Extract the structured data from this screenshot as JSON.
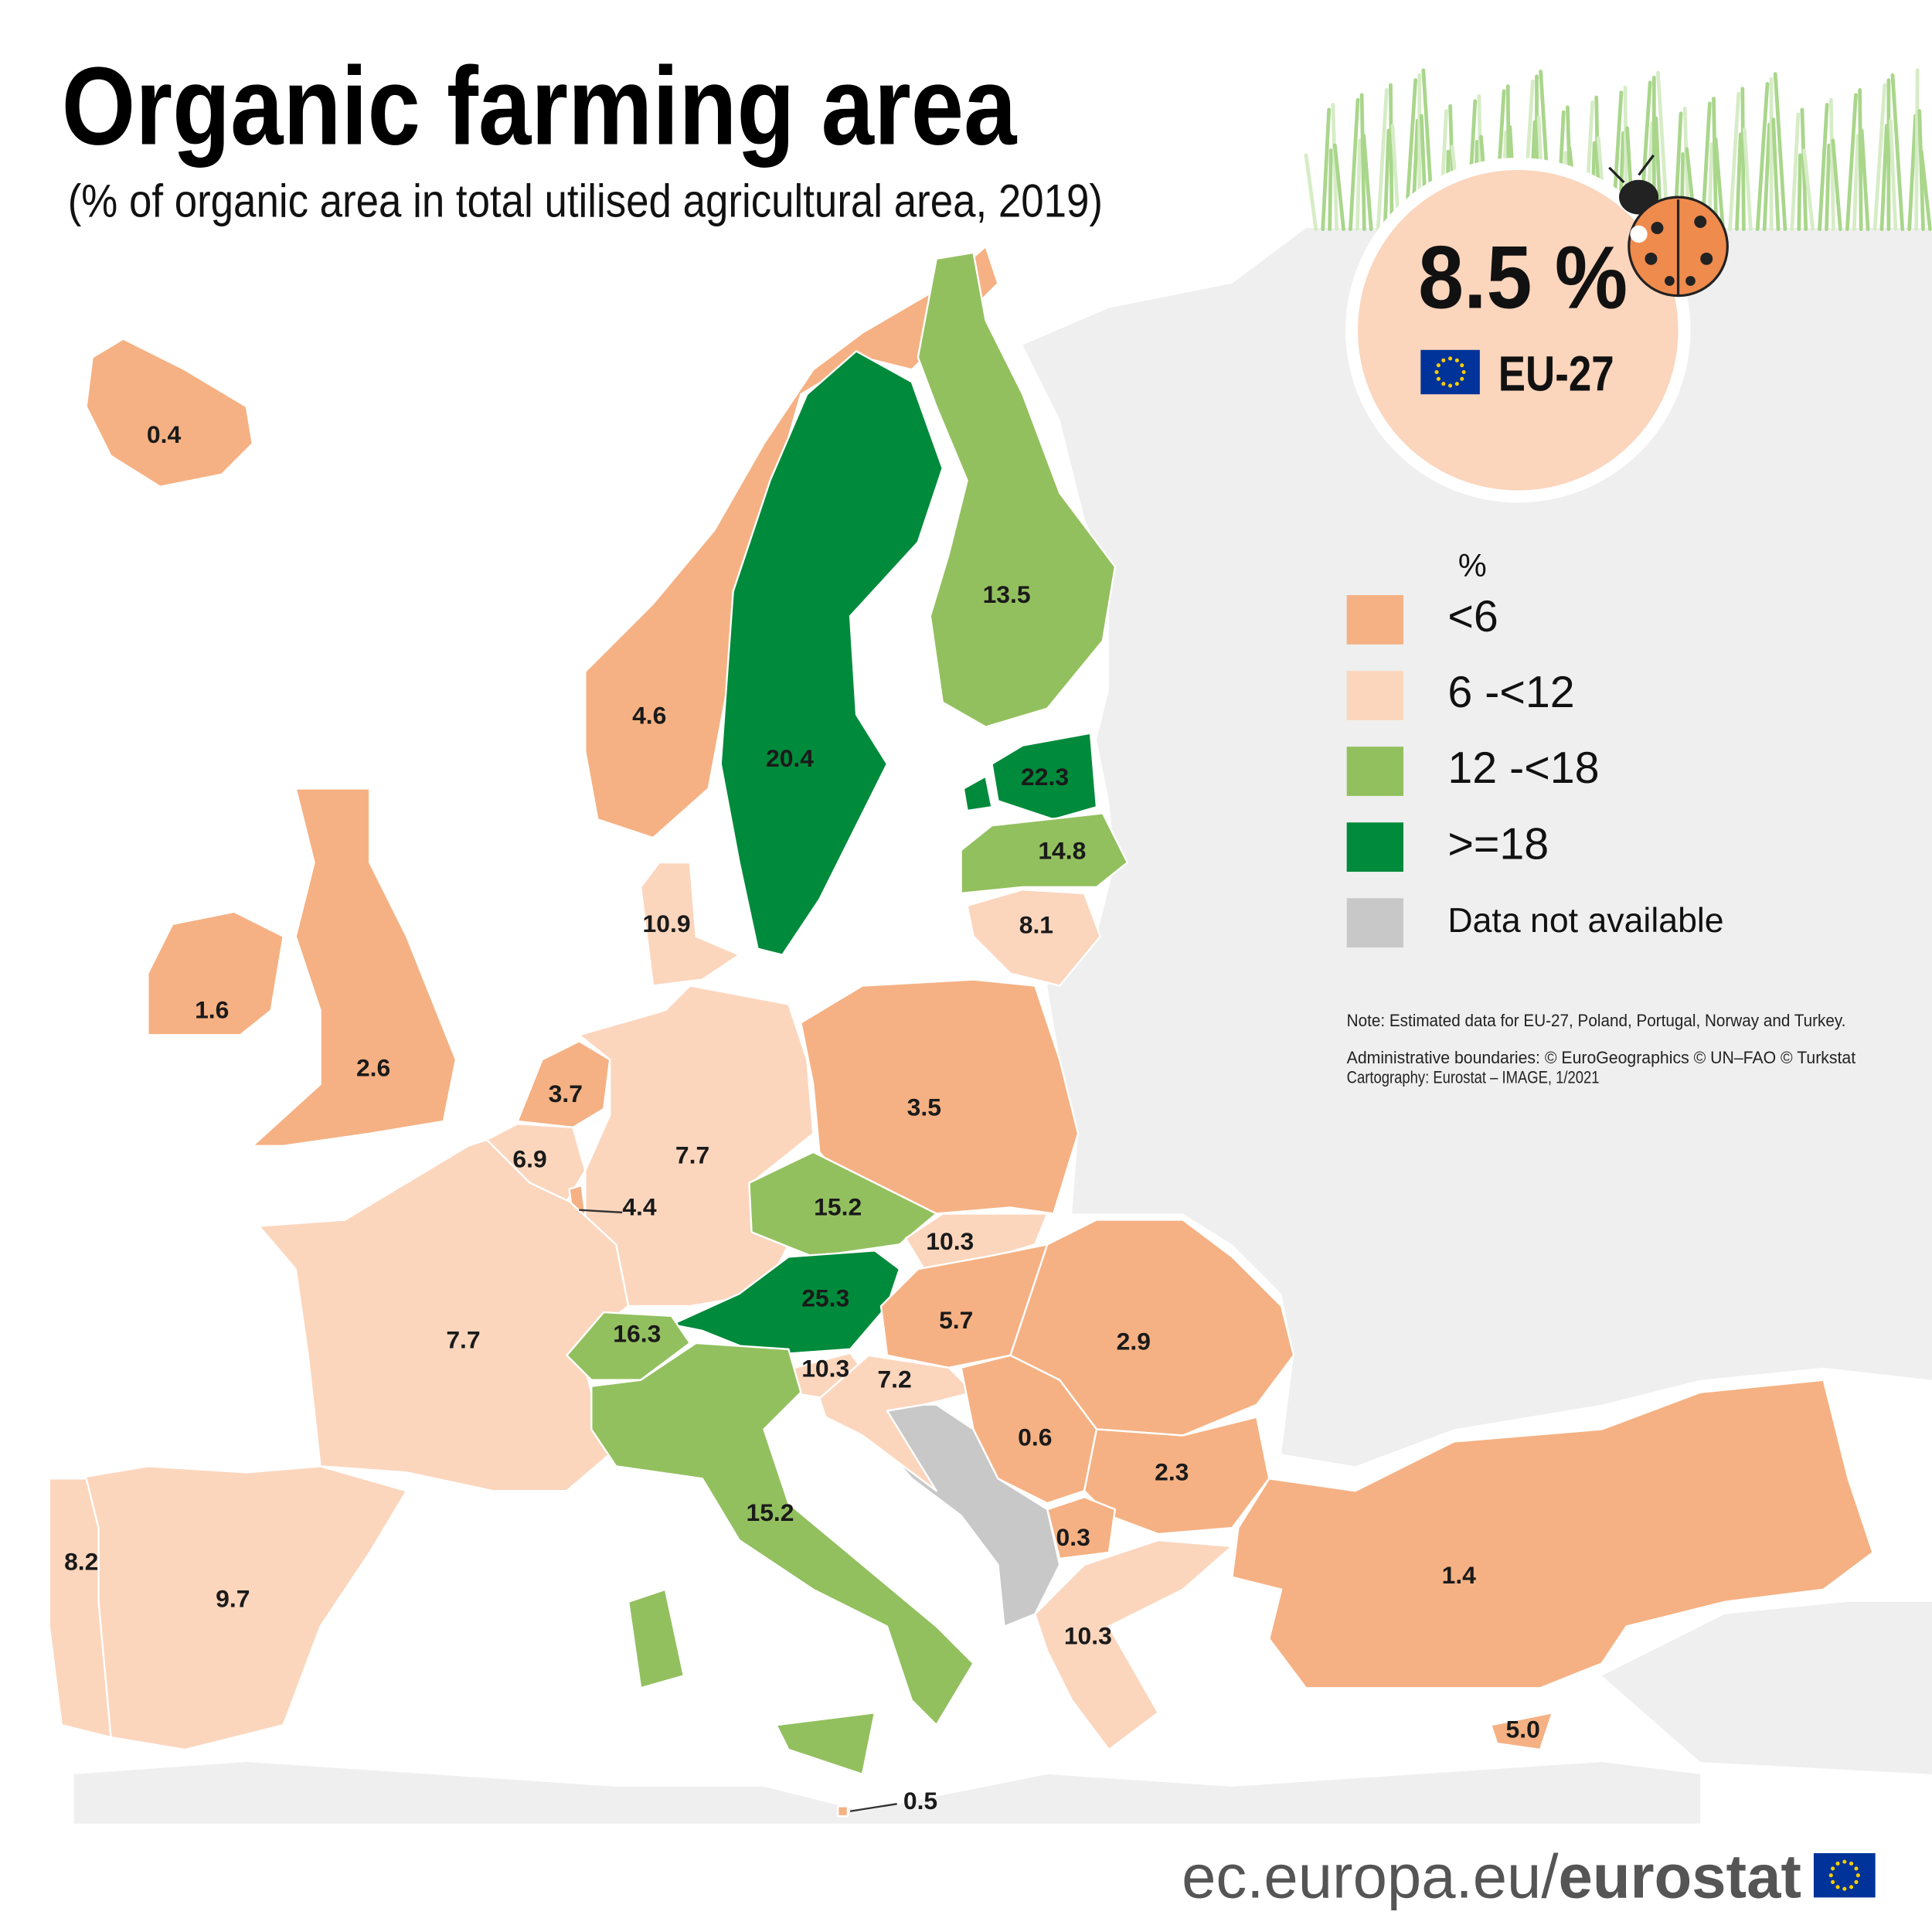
{
  "title": "Organic farming area",
  "subtitle": "(% of organic area in total utilised agricultural area, 2019)",
  "eu_badge": {
    "value": "8.5 %",
    "label": "EU-27",
    "color": "#fbd5bc"
  },
  "legend": {
    "unit": "%",
    "items": [
      {
        "label": "<6",
        "color": "#f5b183"
      },
      {
        "label": "6 -<12",
        "color": "#fbd6bd"
      },
      {
        "label": "12 -<18",
        "color": "#93c05f"
      },
      {
        "label": ">=18",
        "color": "#008a3b"
      },
      {
        "label": "Data not available",
        "color": "#c8c8c8"
      }
    ]
  },
  "regions": [
    {
      "value": "0.4",
      "color": "#f5b183"
    },
    {
      "value": "4.6",
      "color": "#f5b183"
    },
    {
      "value": "20.4",
      "color": "#008a3b"
    },
    {
      "value": "13.5",
      "color": "#93c05f"
    },
    {
      "value": "22.3",
      "color": "#008a3b"
    },
    {
      "value": "14.8",
      "color": "#93c05f"
    },
    {
      "value": "8.1",
      "color": "#fbd6bd"
    },
    {
      "value": "10.9",
      "color": "#fbd6bd"
    },
    {
      "value": "1.6",
      "color": "#f5b183"
    },
    {
      "value": "2.6",
      "color": "#f5b183"
    },
    {
      "value": "3.7",
      "color": "#f5b183"
    },
    {
      "value": "6.9",
      "color": "#fbd6bd"
    },
    {
      "value": "4.4",
      "color": "#f5b183"
    },
    {
      "value": "7.7",
      "color": "#fbd6bd"
    },
    {
      "value": "3.5",
      "color": "#f5b183"
    },
    {
      "value": "15.2",
      "color": "#93c05f"
    },
    {
      "value": "10.3",
      "color": "#fbd6bd"
    },
    {
      "value": "25.3",
      "color": "#008a3b"
    },
    {
      "value": "5.7",
      "color": "#f5b183"
    },
    {
      "value": "2.9",
      "color": "#f5b183"
    },
    {
      "value": "7.7",
      "color": "#fbd6bd"
    },
    {
      "value": "16.3",
      "color": "#93c05f"
    },
    {
      "value": "10.3",
      "color": "#fbd6bd"
    },
    {
      "value": "7.2",
      "color": "#fbd6bd"
    },
    {
      "value": "0.6",
      "color": "#f5b183"
    },
    {
      "value": "2.3",
      "color": "#f5b183"
    },
    {
      "value": "0.3",
      "color": "#f5b183"
    },
    {
      "value": "15.2",
      "color": "#93c05f"
    },
    {
      "value": "9.7",
      "color": "#fbd6bd"
    },
    {
      "value": "8.2",
      "color": "#fbd6bd"
    },
    {
      "value": "10.3",
      "color": "#fbd6bd"
    },
    {
      "value": "1.4",
      "color": "#f5b183"
    },
    {
      "value": "5.0",
      "color": "#f5b183"
    },
    {
      "value": "0.5",
      "color": "#f5b183"
    }
  ],
  "notes": [
    "Note: Estimated data for EU-27, Poland, Portugal, Norway and Turkey.",
    "Administrative boundaries: © EuroGeographics © UN–FAO © Turkstat",
    "Cartography: Eurostat – IMAGE, 1/2021"
  ],
  "footer": {
    "domain": "ec.europa.eu/",
    "brand": "eurostat"
  }
}
